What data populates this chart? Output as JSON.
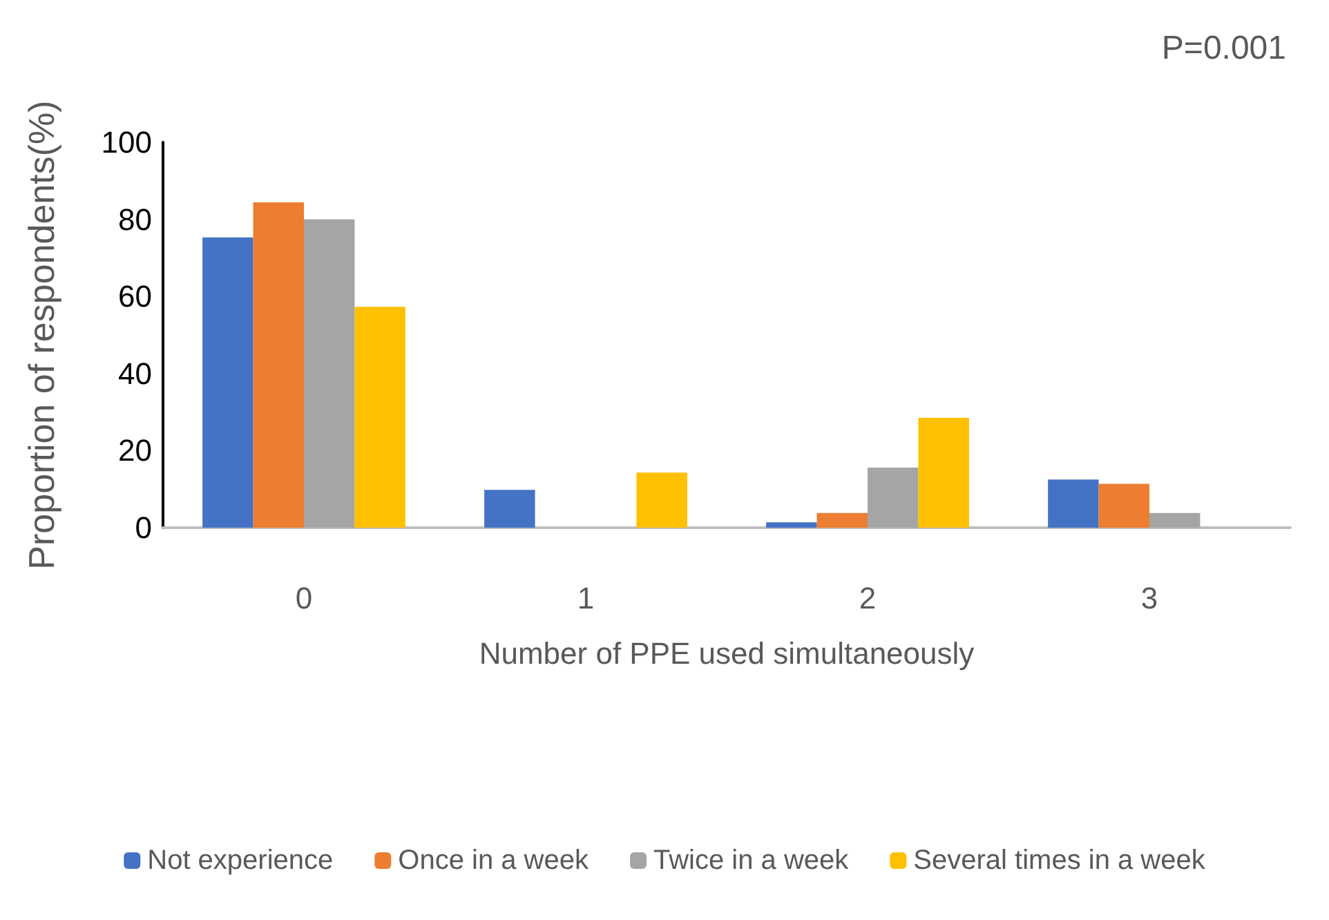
{
  "chart_data": {
    "type": "bar",
    "categories": [
      "0",
      "1",
      "2",
      "3"
    ],
    "xlabel": "Number of PPE used simultaneously",
    "ylabel": "Proportion of respondents(%)",
    "ylim": [
      0,
      100
    ],
    "yticks": [
      0,
      20,
      40,
      60,
      80,
      100
    ],
    "grid": false,
    "legend": "bottom",
    "annotations": [
      "P=0.001"
    ],
    "series": [
      {
        "name": "Not experience",
        "color": "#4472c4",
        "values": [
          75.3,
          9.8,
          1.4,
          12.5
        ]
      },
      {
        "name": "Once in a week",
        "color": "#ed7d31",
        "values": [
          84.4,
          0,
          3.8,
          11.4
        ]
      },
      {
        "name": "Twice in a week",
        "color": "#a5a5a5",
        "values": [
          80,
          0,
          15.6,
          3.8
        ]
      },
      {
        "name": "Several times in a week",
        "color": "#ffc000",
        "values": [
          57.3,
          14.3,
          28.5,
          0
        ]
      }
    ]
  }
}
